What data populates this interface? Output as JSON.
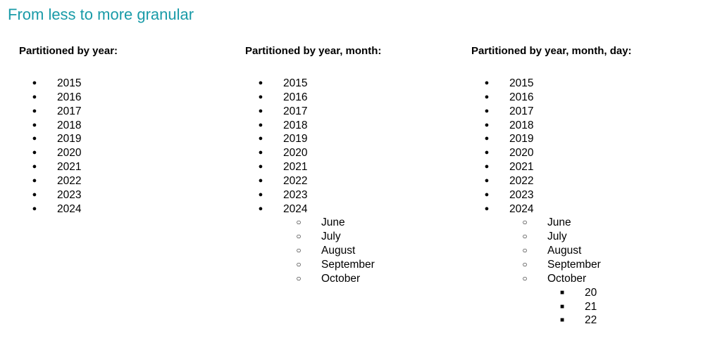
{
  "title": "From less to more granular",
  "bullets": {
    "level1": "●",
    "level2": "○",
    "level3": "■"
  },
  "columns": [
    {
      "heading": "Partitioned by year:",
      "years": [
        "2015",
        "2016",
        "2017",
        "2018",
        "2019",
        "2020",
        "2021",
        "2022",
        "2023",
        "2024"
      ]
    },
    {
      "heading": "Partitioned by year, month:",
      "years": [
        "2015",
        "2016",
        "2017",
        "2018",
        "2019",
        "2020",
        "2021",
        "2022",
        "2023",
        "2024"
      ],
      "months": [
        "June",
        "July",
        "August",
        "September",
        "October"
      ]
    },
    {
      "heading": "Partitioned by year, month, day:",
      "years": [
        "2015",
        "2016",
        "2017",
        "2018",
        "2019",
        "2020",
        "2021",
        "2022",
        "2023",
        "2024"
      ],
      "months": [
        "June",
        "July",
        "August",
        "September",
        "October"
      ],
      "days": [
        "20",
        "21",
        "22"
      ]
    }
  ]
}
